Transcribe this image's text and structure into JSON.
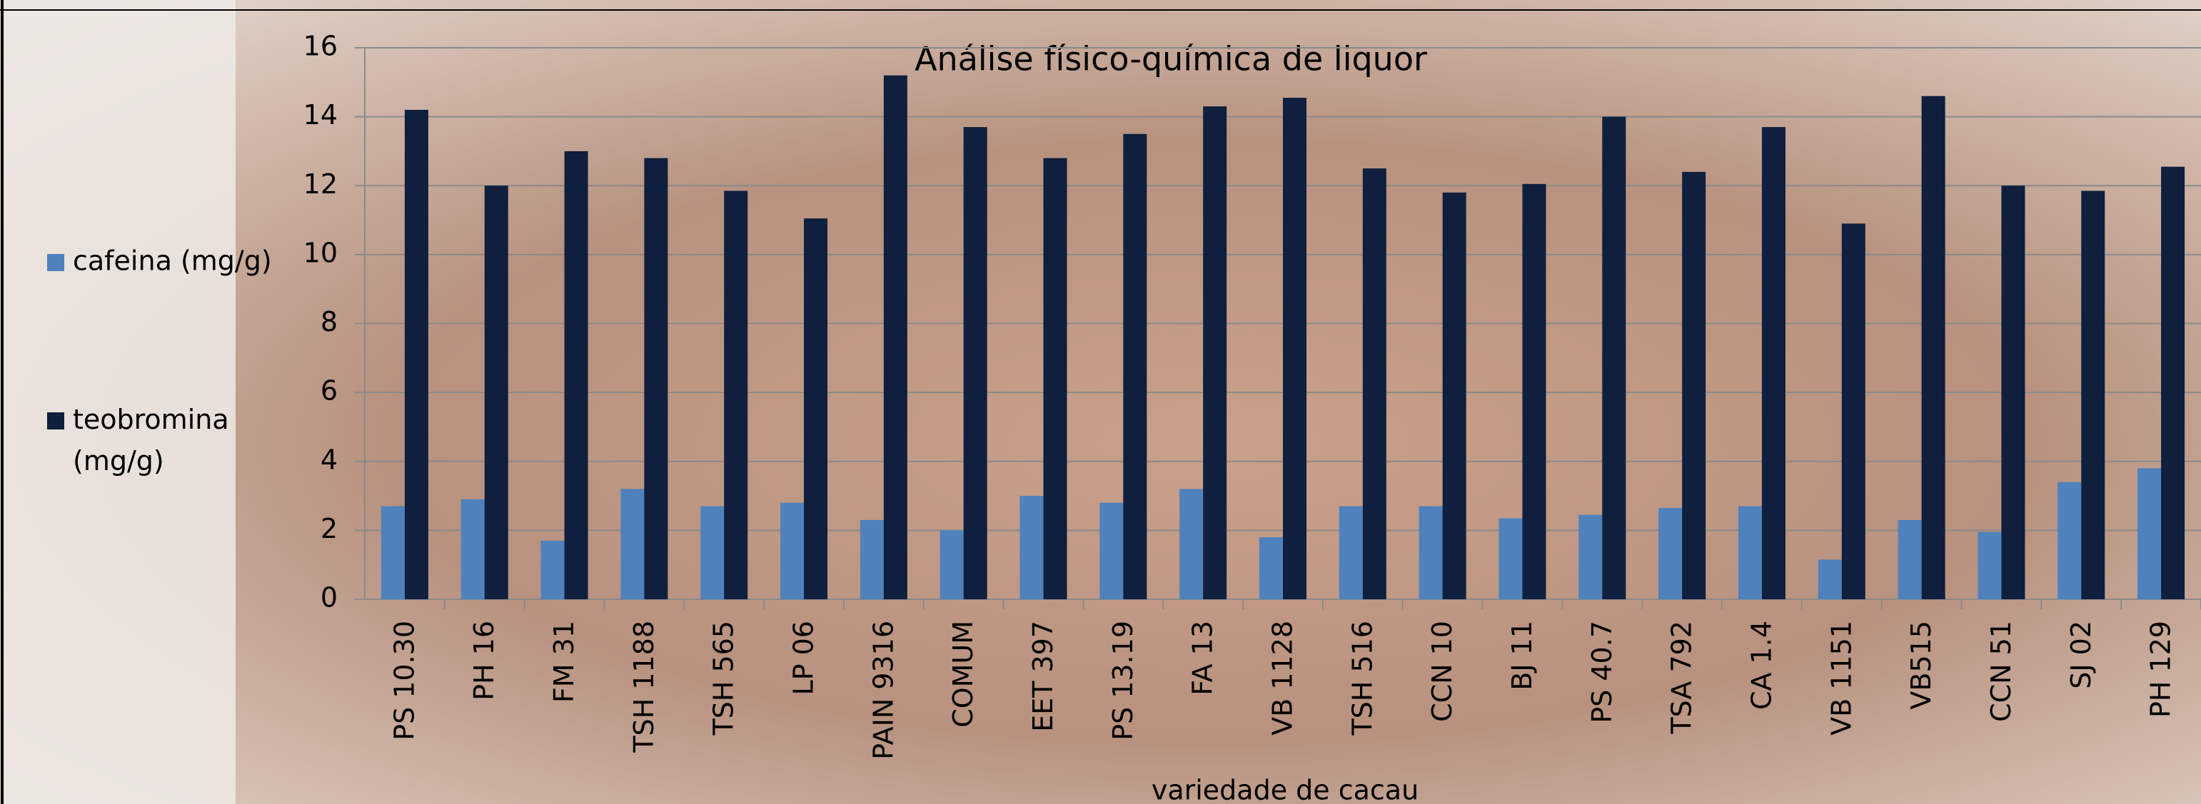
{
  "chart_data": {
    "type": "bar",
    "title": "Análise físico-química de liquor",
    "x_label": "variedade de cacau",
    "categories": [
      "PS 10.30",
      "PH 16",
      "FM 31",
      "TSH 1188",
      "TSH 565",
      "LP 06",
      "PAIN 9316",
      "COMUM",
      "EET 397",
      "PS 13.19",
      "FA 13",
      "VB 1128",
      "TSH 516",
      "CCN 10",
      "BJ 11",
      "PS 40.7",
      "TSA 792",
      "CA 1.4",
      "VB 1151",
      "VB515",
      "CCN 51",
      "SJ 02",
      "PH 129"
    ],
    "series": [
      {
        "name": "cafeina (mg/g)",
        "color": "#4f81bd",
        "values": [
          2.7,
          2.9,
          1.7,
          3.2,
          2.7,
          2.8,
          2.3,
          2.0,
          3.0,
          2.8,
          3.2,
          1.8,
          2.7,
          2.7,
          2.35,
          2.45,
          2.65,
          2.7,
          1.15,
          2.3,
          1.95,
          3.4,
          3.8
        ]
      },
      {
        "name": "teobromina (mg/g)",
        "color": "#0f1f3d",
        "values": [
          14.2,
          12.0,
          13.0,
          12.8,
          11.85,
          11.05,
          15.2,
          13.7,
          12.8,
          13.5,
          14.3,
          14.55,
          12.5,
          11.8,
          12.05,
          14.0,
          12.4,
          13.7,
          10.9,
          14.6,
          12.0,
          11.85,
          12.55
        ]
      }
    ],
    "ylim": [
      0,
      16
    ],
    "yticks": [
      0,
      2,
      4,
      6,
      8,
      10,
      12,
      14,
      16
    ],
    "grid": true,
    "legend": "left"
  }
}
